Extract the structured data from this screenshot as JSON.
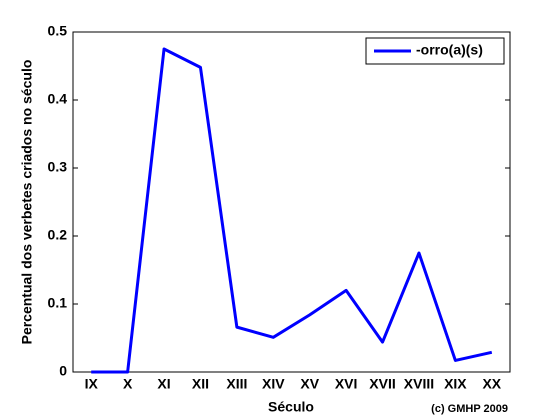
{
  "chart_data": {
    "type": "line",
    "xlabel": "Século",
    "ylabel": "Percentual dos verbetes criados no século",
    "annotation": "(c) GMHP 2009",
    "categories": [
      "IX",
      "X",
      "XI",
      "XII",
      "XIII",
      "XIV",
      "XV",
      "XVI",
      "XVII",
      "XVIII",
      "XIX",
      "XX"
    ],
    "series": [
      {
        "name": "-orro(a)(s)",
        "color": "#0000ff",
        "values": [
          0,
          0,
          0.475,
          0.448,
          0.066,
          0.051,
          0.084,
          0.12,
          0.044,
          0.175,
          0.017,
          0.029
        ]
      }
    ],
    "ylim": [
      0,
      0.5
    ],
    "yticks": [
      0,
      0.1,
      0.2,
      0.3,
      0.4,
      0.5
    ],
    "legend": "top-right"
  }
}
